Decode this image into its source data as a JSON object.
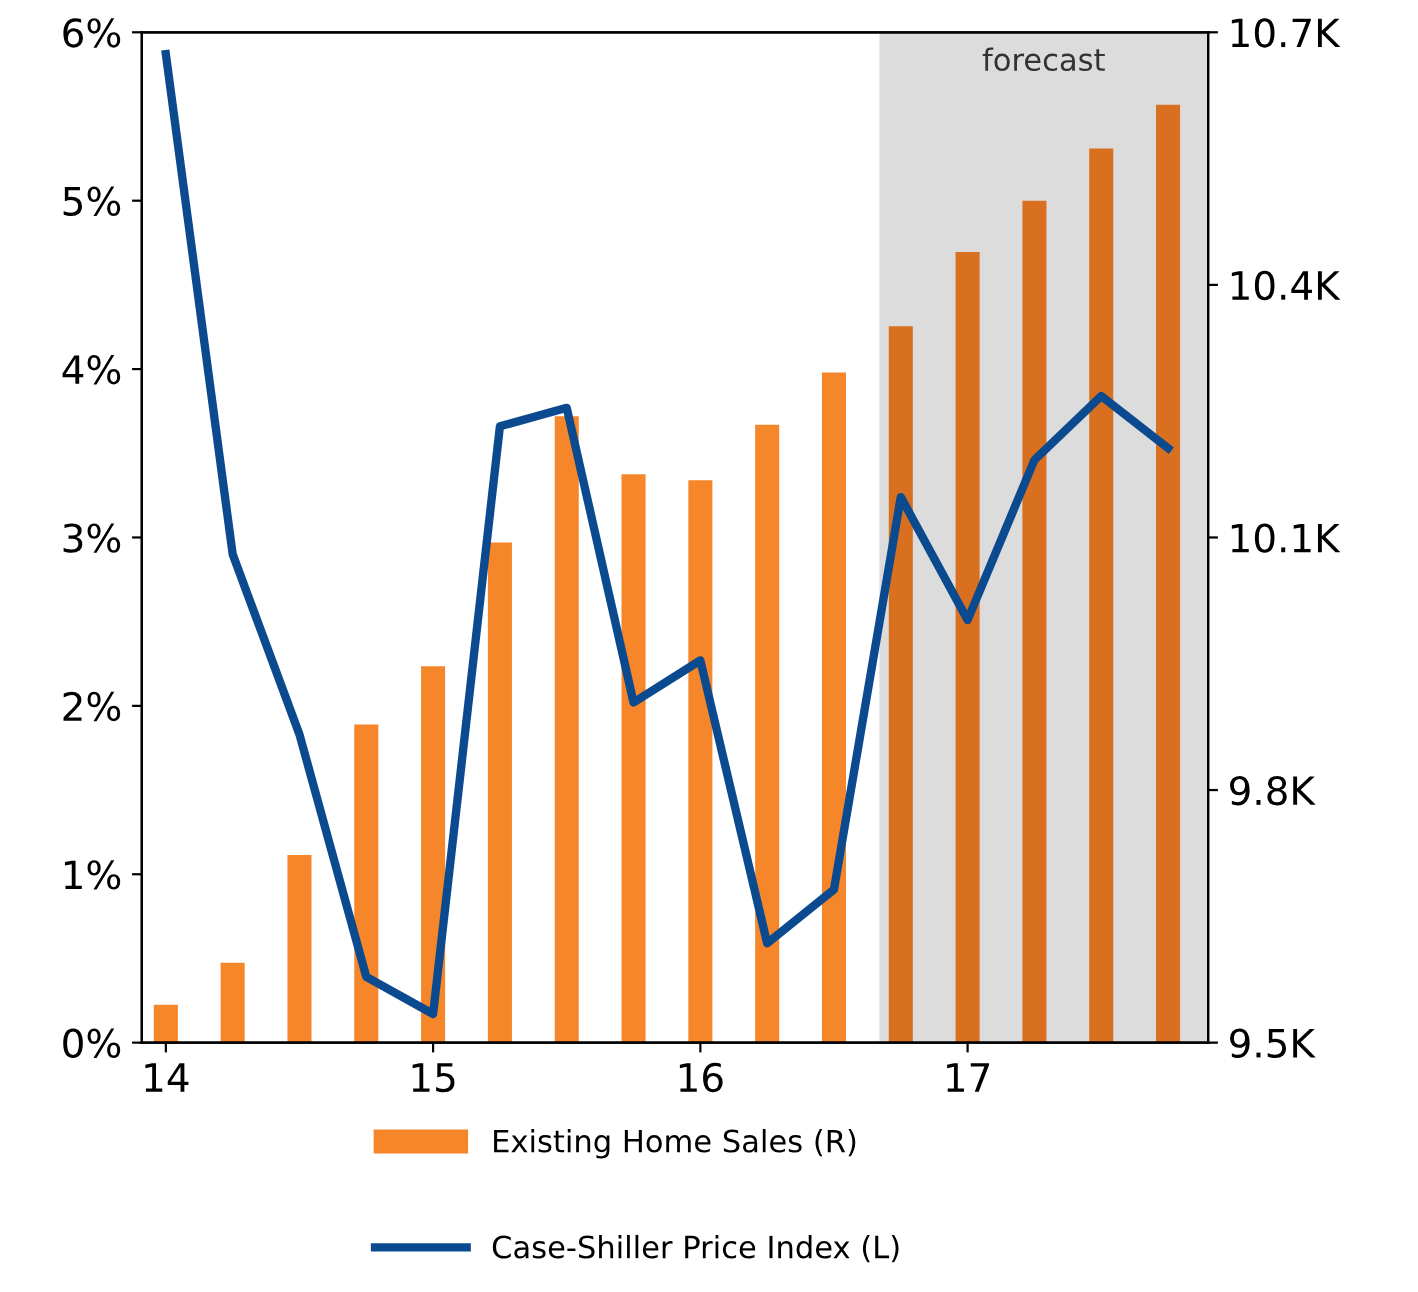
{
  "chart_data": {
    "type": "bar",
    "x": [
      14.0,
      14.25,
      14.5,
      14.75,
      15.0,
      15.25,
      15.5,
      15.75,
      16.0,
      16.25,
      16.5,
      16.75,
      17.0,
      17.25,
      17.5,
      17.75
    ],
    "series": [
      {
        "name": "Existing Home Sales (R)",
        "axis": "y2",
        "colors": [
          "#f5862a",
          "#f5862a",
          "#f5862a",
          "#f5862a",
          "#f5862a",
          "#f5862a",
          "#f5862a",
          "#f5862a",
          "#f5862a",
          "#f5862a",
          "#f5862a",
          "#d9701f",
          "#d9701f",
          "#d9701f",
          "#d9701f",
          "#d9701f"
        ],
        "color": "#f5862a",
        "values": [
          9545,
          9595,
          9723,
          9878,
          9947,
          10094,
          10244,
          10175,
          10168,
          10234,
          10296,
          10351,
          10439,
          10500,
          10562,
          10614
        ]
      },
      {
        "name": "Case-Shiller Price Index (L)",
        "type": "line",
        "axis": "y",
        "color": "#0b4a8f",
        "values": [
          5.87,
          2.9,
          1.83,
          0.39,
          0.17,
          3.66,
          3.77,
          2.02,
          2.27,
          0.59,
          0.91,
          3.24,
          2.51,
          3.46,
          3.84,
          3.53
        ]
      }
    ],
    "xlim": [
      13.91,
      17.9
    ],
    "xticks": [
      14,
      15,
      16,
      17
    ],
    "ylim": [
      0,
      6
    ],
    "yticks": [
      {
        "value": 0,
        "label": "0%"
      },
      {
        "value": 1,
        "label": "1%"
      },
      {
        "value": 2,
        "label": "2%"
      },
      {
        "value": 3,
        "label": "3%"
      },
      {
        "value": 4,
        "label": "4%"
      },
      {
        "value": 5,
        "label": "5%"
      },
      {
        "value": 6,
        "label": "6%"
      }
    ],
    "y2lim": [
      9500,
      10700
    ],
    "y2ticks": [
      {
        "value": 9500,
        "label": "9.5K"
      },
      {
        "value": 9800,
        "label": "9.8K"
      },
      {
        "value": 10100,
        "label": "10.1K"
      },
      {
        "value": 10400,
        "label": "10.4K"
      },
      {
        "value": 10700,
        "label": "10.7K"
      }
    ],
    "bands": [
      {
        "axis": "x",
        "from": 16.67,
        "to": 17.9,
        "label": "forecast",
        "color": "#dcdcdc"
      }
    ],
    "legend": "bottom",
    "grid": false,
    "line_style": "solid",
    "marker": "none"
  }
}
